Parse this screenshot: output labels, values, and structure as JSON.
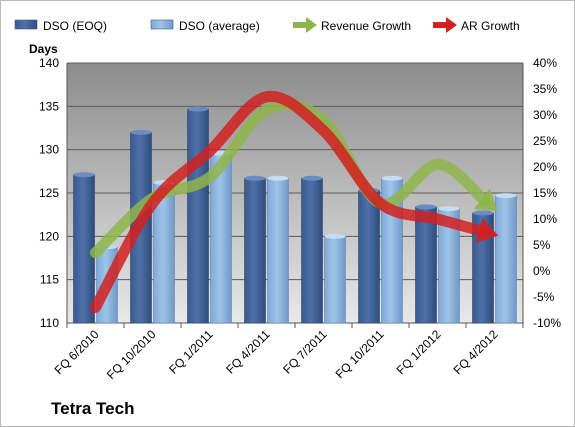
{
  "company_name": "Tetra Tech",
  "colors": {
    "dso_eoq": "#4f71a8",
    "dso_average": "#9ec4e8",
    "revenue_growth": "#8fb54a",
    "ar_growth": "#d42020",
    "plot_background_top": "#8c8c8c",
    "plot_background_bottom": "#e8e8e8"
  },
  "chart_data": {
    "type": "bar",
    "ylabel": "Days",
    "categories": [
      "FQ 6/2010",
      "FQ 10/2010",
      "FQ 1/2011",
      "FQ 4/2011",
      "FQ 7/2011",
      "FQ 10/2011",
      "FQ 1/2012",
      "FQ 4/2012"
    ],
    "ylim": [
      110,
      140
    ],
    "yticks": [
      110,
      115,
      120,
      125,
      130,
      135,
      140
    ],
    "y2lim": [
      -10,
      40
    ],
    "y2ticks": [
      "-10%",
      "-5%",
      "0%",
      "5%",
      "10%",
      "15%",
      "20%",
      "25%",
      "30%",
      "35%",
      "40%"
    ],
    "grid": true,
    "legend_position": "top",
    "series": [
      {
        "name": "DSO (EOQ)",
        "type": "bar",
        "axis": "left",
        "values": [
          127.1,
          132.0,
          134.7,
          126.7,
          126.7,
          125.3,
          123.4,
          122.7
        ]
      },
      {
        "name": "DSO (average)",
        "type": "bar",
        "axis": "left",
        "values": [
          118.8,
          126.2,
          129.6,
          126.7,
          120.0,
          126.7,
          123.2,
          124.7
        ]
      },
      {
        "name": "Revenue Growth",
        "type": "line",
        "axis": "right",
        "values": [
          3.5,
          14.0,
          18.0,
          31.0,
          29.0,
          13.0,
          20.5,
          12.0
        ]
      },
      {
        "name": "AR Growth",
        "type": "line",
        "axis": "right",
        "values": [
          -7.0,
          13.0,
          23.0,
          33.5,
          27.0,
          13.0,
          10.0,
          7.0
        ]
      }
    ]
  }
}
